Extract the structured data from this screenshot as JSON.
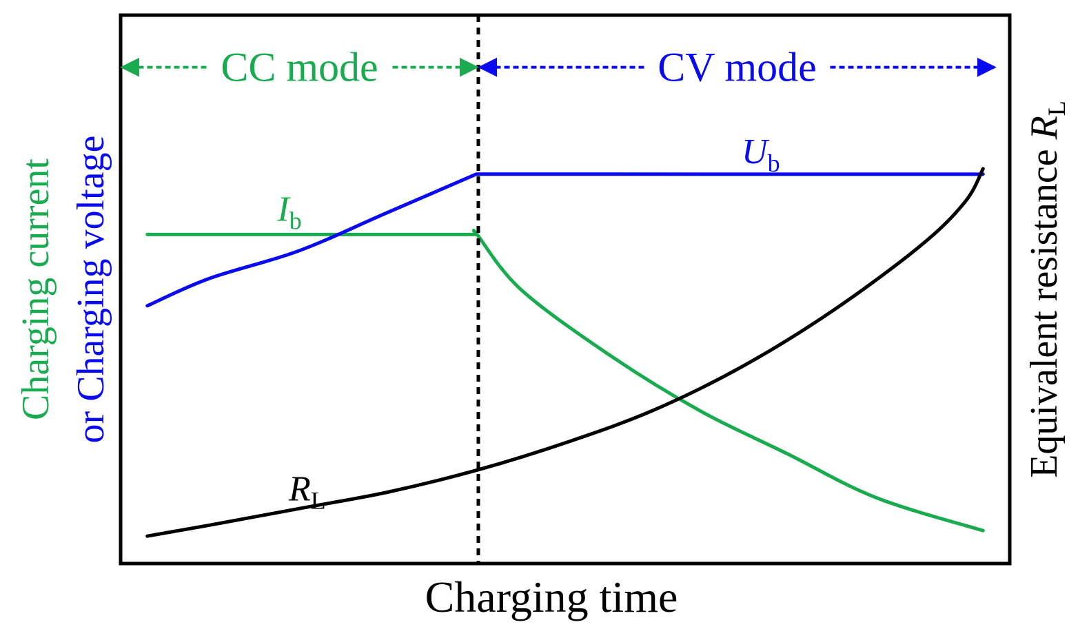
{
  "colors": {
    "current": "#1aab50",
    "voltage": "#0a0aee",
    "resistance": "#000000",
    "frame": "#000000"
  },
  "chart_data": {
    "type": "line",
    "xlabel": "Charging time",
    "ylabel_left_line1": "Charging current",
    "ylabel_left_line2": "or Charging voltage",
    "ylabel_right": "Equivalent resistance",
    "ylabel_right_symbol": "R",
    "ylabel_right_sub": "L",
    "xlim": [
      0,
      1
    ],
    "ylim": [
      0,
      1
    ],
    "grid": false,
    "regions": [
      {
        "label": "CC mode",
        "x_start": 0.0,
        "x_end": 0.4,
        "color": "#1aab50"
      },
      {
        "label": "CV mode",
        "x_start": 0.4,
        "x_end": 1.0,
        "color": "#0a0aee"
      }
    ],
    "divider_x": 0.4,
    "series": [
      {
        "name": "I",
        "subscript": "b",
        "color": "#1aab50",
        "x": [
          0.03,
          0.1,
          0.2,
          0.3,
          0.4,
          0.401,
          0.45,
          0.55,
          0.65,
          0.75,
          0.85,
          0.97
        ],
        "y": [
          0.6,
          0.6,
          0.6,
          0.6,
          0.6,
          0.6,
          0.5,
          0.38,
          0.28,
          0.2,
          0.12,
          0.06
        ]
      },
      {
        "name": "U",
        "subscript": "b",
        "color": "#0a0aee",
        "x": [
          0.03,
          0.1,
          0.2,
          0.3,
          0.4,
          0.55,
          0.7,
          0.85,
          0.97
        ],
        "y": [
          0.47,
          0.52,
          0.57,
          0.64,
          0.71,
          0.71,
          0.71,
          0.71,
          0.71
        ]
      },
      {
        "name": "R",
        "subscript": "L",
        "color": "#000000",
        "x": [
          0.03,
          0.1,
          0.2,
          0.3,
          0.4,
          0.5,
          0.6,
          0.7,
          0.8,
          0.9,
          0.95,
          0.97
        ],
        "y": [
          0.05,
          0.07,
          0.1,
          0.13,
          0.17,
          0.22,
          0.28,
          0.36,
          0.46,
          0.58,
          0.66,
          0.72
        ]
      }
    ]
  }
}
